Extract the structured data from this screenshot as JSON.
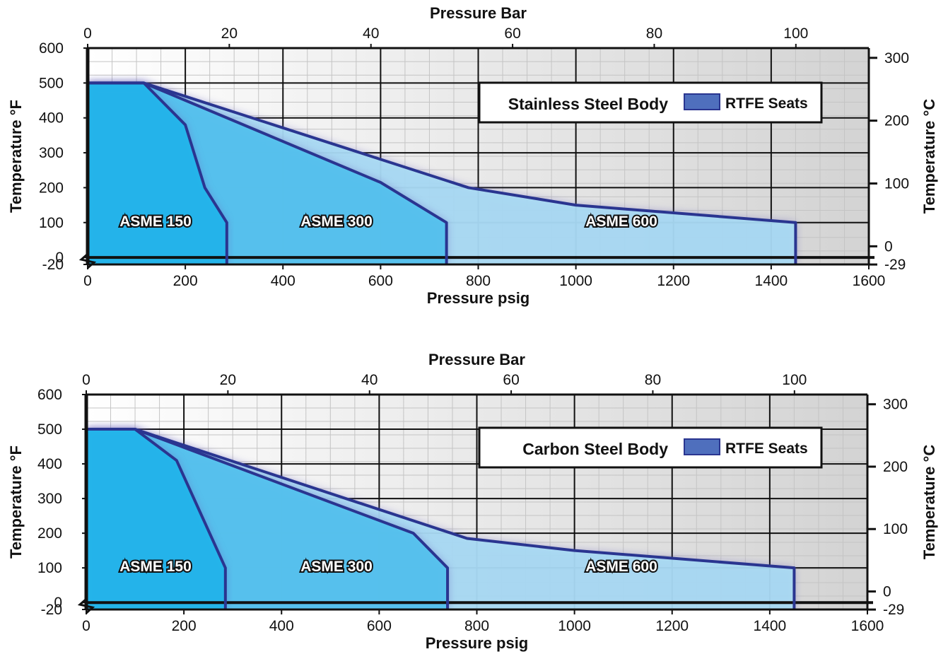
{
  "chart_data": [
    {
      "type": "area",
      "legend": {
        "title": "Stainless Steel Body",
        "item": "RTFE Seats",
        "color": "#4f6fbd",
        "placement": "top-right"
      },
      "x_bottom": {
        "label": "Pressure psig",
        "range": [
          0,
          1600
        ],
        "ticks": [
          "0",
          "200",
          "400",
          "600",
          "800",
          "1000",
          "1200",
          "1400",
          "1600"
        ]
      },
      "x_top": {
        "label": "Pressure Bar",
        "range": [
          0,
          110.3
        ],
        "ticks": [
          "0",
          "20",
          "40",
          "60",
          "80",
          "100"
        ]
      },
      "y_left": {
        "label": "Temperature °F",
        "range": [
          -20,
          600
        ],
        "ticks": [
          "600",
          "500",
          "400",
          "300",
          "200",
          "100",
          "0",
          "-20"
        ]
      },
      "y_right": {
        "label": "Temperature °C",
        "ticks": [
          "300",
          "200",
          "100",
          "0",
          "-29"
        ]
      },
      "grid": true,
      "series": [
        {
          "name": "ASME 150",
          "points": [
            [
              0,
              -20
            ],
            [
              0,
              500
            ],
            [
              115,
              500
            ],
            [
              200,
              380
            ],
            [
              240,
              200
            ],
            [
              285,
              100
            ],
            [
              285,
              -20
            ]
          ]
        },
        {
          "name": "ASME 300",
          "points": [
            [
              0,
              -20
            ],
            [
              0,
              500
            ],
            [
              115,
              500
            ],
            [
              600,
              215
            ],
            [
              735,
              100
            ],
            [
              735,
              -20
            ]
          ]
        },
        {
          "name": "ASME 600",
          "points": [
            [
              0,
              -20
            ],
            [
              0,
              500
            ],
            [
              115,
              500
            ],
            [
              780,
              200
            ],
            [
              1000,
              150
            ],
            [
              1450,
              100
            ],
            [
              1450,
              -20
            ]
          ]
        }
      ]
    },
    {
      "type": "area",
      "legend": {
        "title": "Carbon Steel Body",
        "item": "RTFE Seats",
        "color": "#4f6fbd",
        "placement": "top-right"
      },
      "x_bottom": {
        "label": "Pressure psig",
        "range": [
          0,
          1600
        ],
        "ticks": [
          "0",
          "200",
          "400",
          "600",
          "800",
          "1000",
          "1200",
          "1400",
          "1600"
        ]
      },
      "x_top": {
        "label": "Pressure Bar",
        "range": [
          0,
          110.3
        ],
        "ticks": [
          "0",
          "20",
          "40",
          "60",
          "80",
          "100"
        ]
      },
      "y_left": {
        "label": "Temperature °F",
        "range": [
          -20,
          600
        ],
        "ticks": [
          "600",
          "500",
          "400",
          "300",
          "200",
          "100",
          "0",
          "-20"
        ]
      },
      "y_right": {
        "label": "Temperature °C",
        "ticks": [
          "300",
          "200",
          "100",
          "0",
          "-29"
        ]
      },
      "grid": true,
      "series": [
        {
          "name": "ASME 150",
          "points": [
            [
              0,
              -20
            ],
            [
              0,
              500
            ],
            [
              100,
              500
            ],
            [
              185,
              410
            ],
            [
              285,
              100
            ],
            [
              285,
              -20
            ]
          ]
        },
        {
          "name": "ASME 300",
          "points": [
            [
              0,
              -20
            ],
            [
              0,
              500
            ],
            [
              100,
              500
            ],
            [
              670,
              200
            ],
            [
              740,
              100
            ],
            [
              740,
              -20
            ]
          ]
        },
        {
          "name": "ASME 600",
          "points": [
            [
              0,
              -20
            ],
            [
              0,
              500
            ],
            [
              100,
              500
            ],
            [
              780,
              185
            ],
            [
              1000,
              150
            ],
            [
              1450,
              100
            ],
            [
              1450,
              -20
            ]
          ]
        }
      ]
    }
  ]
}
